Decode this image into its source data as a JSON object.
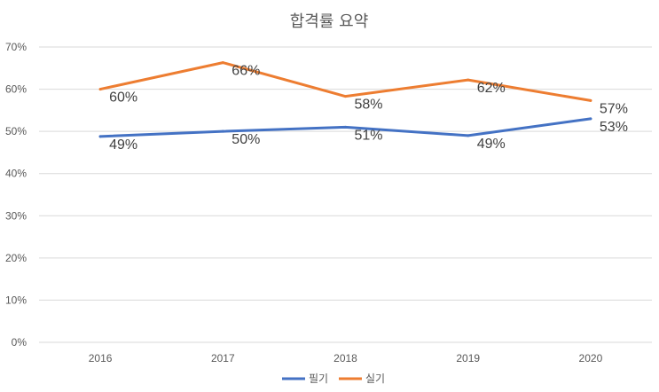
{
  "chart_data": {
    "type": "line",
    "title": "합격률 요약",
    "categories": [
      "2016",
      "2017",
      "2018",
      "2019",
      "2020"
    ],
    "ylim": [
      0,
      70
    ],
    "yticks": [
      "0%",
      "10%",
      "20%",
      "30%",
      "40%",
      "50%",
      "60%",
      "70%"
    ],
    "grid": true,
    "legend_position": "bottom",
    "series": [
      {
        "name": "필기",
        "color": "#4472c4",
        "values": [
          49,
          50,
          51,
          49,
          53
        ],
        "plot_values": [
          48.8,
          50.0,
          51.0,
          49.0,
          53.0
        ],
        "labels": [
          "49%",
          "50%",
          "51%",
          "49%",
          "53%"
        ]
      },
      {
        "name": "실기",
        "color": "#ed7d31",
        "values": [
          60,
          66,
          58,
          62,
          57
        ],
        "plot_values": [
          60.0,
          66.3,
          58.3,
          62.2,
          57.3
        ],
        "labels": [
          "60%",
          "66%",
          "58%",
          "62%",
          "57%"
        ]
      }
    ]
  }
}
